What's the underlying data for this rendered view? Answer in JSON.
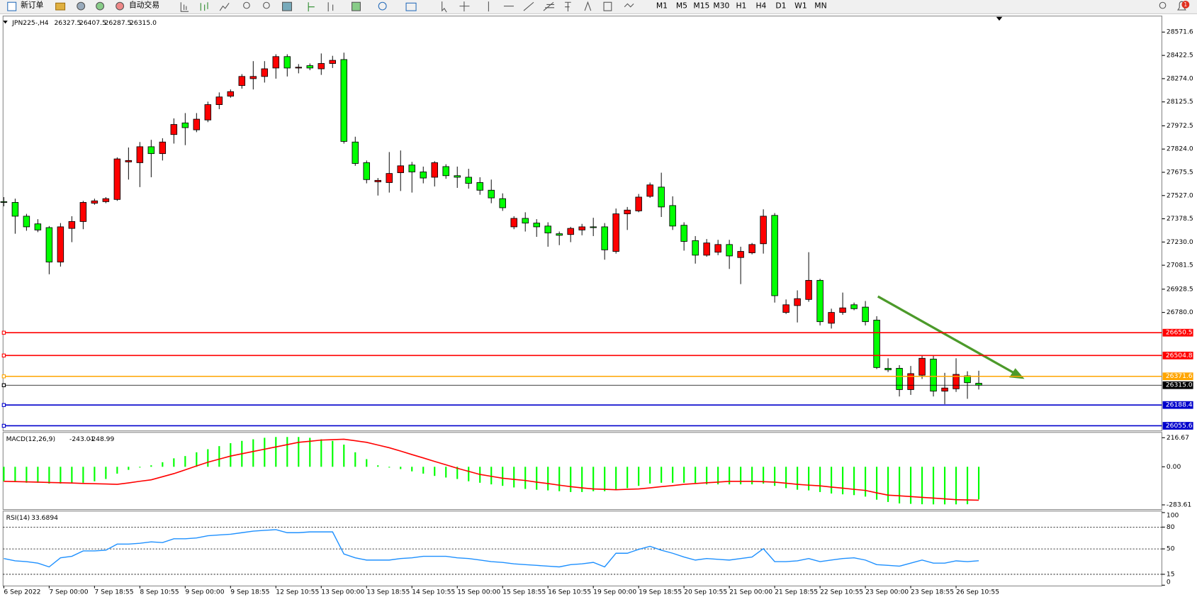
{
  "toolbar": {
    "new_order": "新订单",
    "auto_trading": "自动交易",
    "timeframes": [
      "M1",
      "M5",
      "M15",
      "M30",
      "H1",
      "H4",
      "D1",
      "W1",
      "MN"
    ],
    "notification": "1"
  },
  "chart_data": {
    "type": "candlestick",
    "title": "JPN225-,H4",
    "categories": [
      "6 Sep 2022",
      null,
      null,
      null,
      "7 Sep 00:00",
      null,
      null,
      null,
      "7 Sep 18:55",
      null,
      null,
      null,
      "8 Sep 10:55",
      null,
      null,
      null,
      "9 Sep 00:00",
      null,
      null,
      null,
      "9 Sep 18:55",
      null,
      null,
      null,
      "12 Sep 10:55",
      null,
      null,
      null,
      "13 Sep 00:00",
      null,
      null,
      null,
      "13 Sep 18:55",
      null,
      null,
      null,
      "14 Sep 10:55",
      null,
      null,
      null,
      "15 Sep 00:00",
      null,
      null,
      null,
      "15 Sep 18:55",
      null,
      null,
      null,
      "16 Sep 10:55",
      null,
      null,
      null,
      "19 Sep 00:00",
      null,
      null,
      null,
      "19 Sep 18:55",
      null,
      null,
      null,
      "20 Sep 10:55",
      null,
      null,
      null,
      "21 Sep 00:00",
      null,
      null,
      null,
      "21 Sep 18:55",
      null,
      null,
      null,
      "22 Sep 10:55",
      null,
      null,
      null,
      "23 Sep 00:00",
      null,
      null,
      null,
      "23 Sep 18:55",
      null,
      null,
      null,
      "26 Sep 10:55",
      null,
      null
    ],
    "open": [
      27488,
      27483,
      27395,
      27346,
      27322,
      27102,
      27317,
      27361,
      27478,
      27488,
      27502,
      27742,
      27737,
      27839,
      27795,
      27917,
      27991,
      27947,
      28010,
      28108,
      28162,
      28230,
      28274,
      28288,
      28342,
      28415,
      28342,
      28357,
      28337,
      28371,
      28396,
      27869,
      27737,
      27615,
      27610,
      27673,
      27722,
      27678,
      27644,
      27712,
      27654,
      27644,
      27610,
      27561,
      27507,
      27327,
      27381,
      27351,
      27332,
      27283,
      27278,
      27307,
      27327,
      27327,
      27170,
      27410,
      27429,
      27522,
      27581,
      27463,
      27337,
      27239,
      27146,
      27165,
      27214,
      27131,
      27161,
      27219,
      27400,
      26780,
      26824,
      26863,
      26985,
      26711,
      26780,
      26829,
      26814,
      26731,
      26423,
      26423,
      26287,
      26379,
      26482,
      26277,
      26292,
      26375,
      26327.5
    ],
    "high": [
      27517,
      27507,
      27410,
      27376,
      27332,
      27351,
      27395,
      27493,
      27507,
      27517,
      27771,
      27834,
      27869,
      27883,
      27893,
      28020,
      28054,
      28054,
      28127,
      28186,
      28205,
      28303,
      28386,
      28386,
      28430,
      28430,
      28367,
      28371,
      28435,
      28420,
      28440,
      27903,
      27751,
      27639,
      27805,
      27815,
      27742,
      27712,
      27747,
      27727,
      27712,
      27698,
      27644,
      27629,
      27541,
      27395,
      27420,
      27376,
      27356,
      27297,
      27327,
      27346,
      27385,
      27351,
      27444,
      27454,
      27537,
      27610,
      27673,
      27522,
      27356,
      27268,
      27249,
      27244,
      27244,
      27200,
      27224,
      27439,
      27415,
      26863,
      26921,
      27165,
      26995,
      26804,
      26907,
      26843,
      26853,
      26756,
      26487,
      26443,
      26438,
      26502,
      26502,
      26394,
      26487,
      26404,
      26407.5
    ],
    "low": [
      27458,
      27283,
      27302,
      27293,
      27024,
      27073,
      27229,
      27312,
      27468,
      27478,
      27493,
      27629,
      27581,
      27644,
      27751,
      27859,
      27849,
      27932,
      27996,
      28079,
      28152,
      28210,
      28205,
      28249,
      28274,
      28288,
      28308,
      28328,
      28298,
      28342,
      27859,
      27717,
      27605,
      27527,
      27546,
      27556,
      27546,
      27605,
      27585,
      27634,
      27576,
      27571,
      27532,
      27478,
      27429,
      27312,
      27297,
      27263,
      27200,
      27210,
      27229,
      27273,
      27268,
      27117,
      27156,
      27307,
      27420,
      27512,
      27390,
      27307,
      27175,
      27092,
      27136,
      27146,
      27058,
      26961,
      27151,
      27156,
      26843,
      26770,
      26716,
      26848,
      26697,
      26677,
      26765,
      26794,
      26697,
      26418,
      26399,
      26243,
      26253,
      26355,
      26243,
      26194,
      26272,
      26228,
      26287.5
    ],
    "close": [
      27483,
      27395,
      27327,
      27307,
      27102,
      27327,
      27361,
      27483,
      27493,
      27507,
      27761,
      27751,
      27839,
      27795,
      27869,
      27981,
      27961,
      28015,
      28108,
      28157,
      28191,
      28288,
      28288,
      28337,
      28415,
      28342,
      28347,
      28342,
      28371,
      28391,
      27873,
      27732,
      27629,
      27624,
      27668,
      27717,
      27678,
      27639,
      27737,
      27654,
      27644,
      27605,
      27561,
      27512,
      27449,
      27381,
      27351,
      27327,
      27288,
      27273,
      27317,
      27327,
      27322,
      27180,
      27410,
      27434,
      27517,
      27595,
      27454,
      27332,
      27234,
      27146,
      27224,
      27214,
      27141,
      27170,
      27214,
      27395,
      26887,
      26829,
      26868,
      26985,
      26721,
      26780,
      26809,
      26804,
      26721,
      26428,
      26413,
      26287,
      26389,
      26487,
      26277,
      26297,
      26384,
      26331,
      26315.0
    ],
    "up_color": "#ff0000",
    "down_color": "#00ff00",
    "ylim": [
      26028,
      28669.2
    ],
    "yticks": [
      28571.6,
      28422.5,
      {
        "value": 28274.0,
        "label": "28274.0"
      },
      28125.5,
      27972.5,
      {
        "value": 27824.0,
        "label": "27824.0"
      },
      27675.5,
      {
        "value": 27527.0,
        "label": "27527.0"
      },
      27378.5,
      {
        "value": 27230.0,
        "label": "27230.0"
      },
      27081.5,
      26928.5,
      {
        "value": 26780.0,
        "label": "26780.0"
      }
    ],
    "levels": [
      {
        "value": 26650.5,
        "color": "#ff0000"
      },
      {
        "value": 26504.8,
        "color": "#ff0000"
      },
      {
        "value": 26371.6,
        "color": "#ffa500"
      },
      {
        "value": 26315.0,
        "label": "26315.0",
        "color": "#000000"
      },
      {
        "value": 26188.4,
        "color": "#0000cc"
      },
      {
        "value": 26055.6,
        "color": "#0000cc"
      }
    ],
    "macd": {
      "title": "MACD(12,26,9)",
      "color": "#00ff00",
      "signal_color": "#ff0000",
      "values": [
        -108,
        -114,
        -119,
        -119,
        -125,
        -125,
        -125,
        -119,
        -108,
        -91,
        -51,
        -23,
        -6,
        11,
        34,
        63,
        80,
        108,
        131,
        154,
        176,
        193,
        205,
        216,
        222,
        222,
        222,
        216,
        205,
        193,
        165,
        108,
        57,
        11,
        -6,
        -17,
        -34,
        -51,
        -68,
        -80,
        -91,
        -108,
        -119,
        -131,
        -142,
        -154,
        -165,
        -171,
        -176,
        -182,
        -188,
        -188,
        -182,
        -182,
        -171,
        -159,
        -142,
        -125,
        -119,
        -119,
        -119,
        -125,
        -131,
        -131,
        -131,
        -131,
        -131,
        -125,
        -142,
        -159,
        -171,
        -176,
        -188,
        -199,
        -205,
        -211,
        -222,
        -245,
        -262,
        -273,
        -276,
        -279,
        -280,
        -280,
        -280,
        -279,
        -243.01
      ],
      "signal": [
        -108,
        -110,
        -112,
        -114,
        -117,
        -119,
        -121,
        -124,
        -126,
        -128,
        -131,
        -120,
        -108,
        -97,
        -74,
        -51,
        -23,
        6,
        34,
        57,
        80,
        97,
        114,
        131,
        148,
        165,
        182,
        190,
        199,
        202,
        205,
        194,
        182,
        162,
        142,
        117,
        91,
        66,
        40,
        15,
        -11,
        -34,
        -57,
        -71,
        -85,
        -94,
        -102,
        -114,
        -125,
        -137,
        -148,
        -157,
        -165,
        -168,
        -171,
        -168,
        -165,
        -157,
        -148,
        -140,
        -131,
        -125,
        -119,
        -114,
        -108,
        -108,
        -108,
        -111,
        -114,
        -122,
        -131,
        -137,
        -142,
        -151,
        -159,
        -168,
        -176,
        -194,
        -211,
        -216,
        -222,
        -228,
        -233,
        -239,
        -245,
        -247,
        -248.99
      ],
      "ylim": [
        -318.6,
        256.1
      ],
      "yticks": [
        216.67,
        {
          "value": 0,
          "label": "0.00"
        },
        -283.61
      ]
    },
    "rsi": {
      "title": "RSI(14)",
      "color": "#1e90ff",
      "values": [
        36.7,
        33.5,
        32.5,
        30.4,
        25.2,
        37.7,
        39.8,
        47.2,
        47.2,
        48.2,
        56.6,
        56.6,
        57.7,
        59.7,
        58.7,
        63.9,
        63.9,
        65.0,
        68.1,
        69.2,
        70.2,
        72.3,
        74.4,
        75.5,
        76.5,
        72.3,
        72.3,
        73.4,
        73.4,
        73.4,
        43.0,
        37.7,
        34.6,
        34.6,
        34.6,
        36.7,
        37.7,
        39.8,
        39.8,
        39.8,
        37.7,
        36.7,
        34.6,
        32.5,
        31.4,
        29.4,
        28.3,
        27.3,
        26.2,
        25.2,
        28.3,
        29.4,
        31.4,
        25.2,
        44.0,
        44.0,
        49.3,
        53.5,
        48.2,
        44.0,
        38.8,
        34.6,
        36.7,
        35.6,
        34.6,
        36.7,
        38.8,
        50.3,
        32.5,
        32.5,
        33.5,
        36.7,
        32.5,
        34.6,
        36.7,
        37.7,
        34.6,
        28.3,
        27.3,
        26.2,
        30.4,
        34.6,
        30.4,
        30.4,
        33.5,
        32.5,
        33.6894
      ],
      "ylim": [
        0,
        101
      ],
      "yticks": [
        100,
        80,
        50,
        15,
        0
      ],
      "levels": [
        80,
        50,
        15
      ]
    }
  }
}
